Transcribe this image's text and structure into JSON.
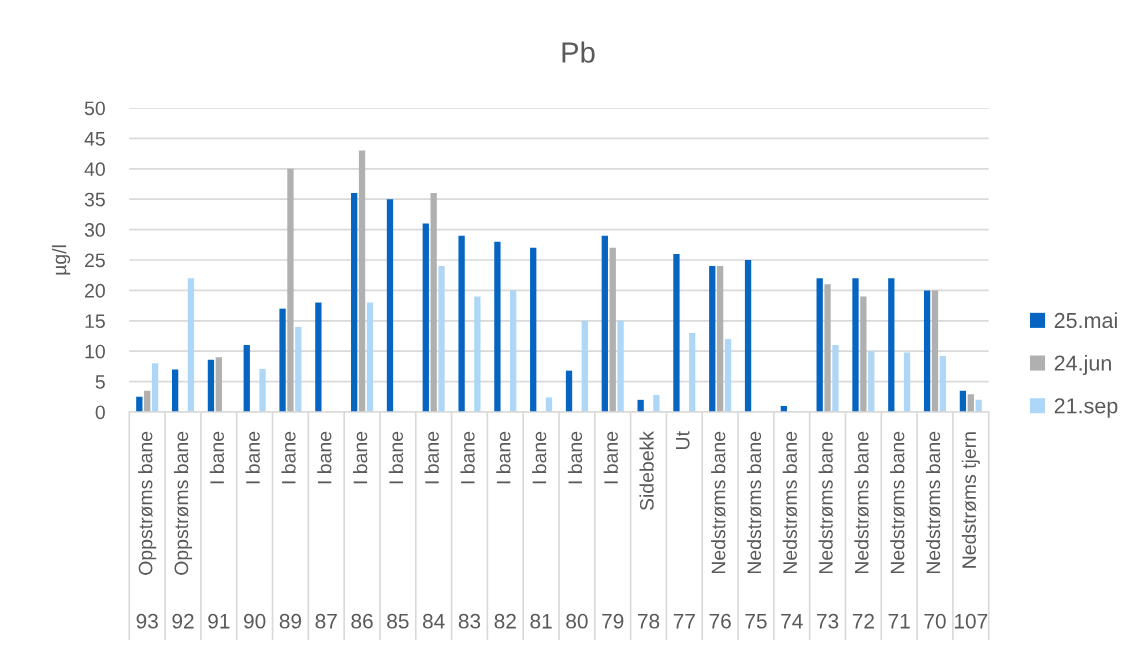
{
  "chart_data": {
    "type": "bar",
    "title": "Pb",
    "ylabel": "µg/l",
    "categories": [
      "Oppstrøms bane\n93",
      "Oppstrøms bane\n92",
      "I bane\n91",
      "I bane\n90",
      "I bane\n89",
      "I bane\n87",
      "I bane\n86",
      "I bane\n85",
      "I bane\n84",
      "I bane\n83",
      "I bane\n82",
      "I bane\n81",
      "I bane\n80",
      "I bane\n79",
      "Sidebekk\n78",
      "Ut\n77",
      "Nedstrøms bane\n76",
      "Nedstrøms bane\n75",
      "Nedstrøms bane\n74",
      "Nedstrøms bane\n73",
      "Nedstrøms bane\n72",
      "Nedstrøms bane\n71",
      "Nedstrøms bane\n70",
      "Nedstrøms tjern\n107"
    ],
    "series": [
      {
        "name": "25.mai",
        "color": "#0565c0",
        "values": [
          2.5,
          7,
          8.6,
          11,
          17,
          18,
          36,
          35,
          31,
          29,
          28,
          27,
          6.8,
          29,
          2.0,
          26,
          24,
          25,
          1.0,
          22,
          22,
          22,
          20,
          3.5
        ]
      },
      {
        "name": "24.jun",
        "color": "#b0b0b0",
        "values": [
          3.5,
          null,
          9,
          null,
          40,
          null,
          43,
          null,
          36,
          null,
          null,
          null,
          null,
          27,
          null,
          null,
          24,
          null,
          null,
          21,
          19,
          null,
          20,
          2.9
        ]
      },
      {
        "name": "21.sep",
        "color": "#aed7f7",
        "values": [
          8,
          22,
          null,
          7.1,
          14,
          null,
          18,
          null,
          24,
          19,
          20,
          2.4,
          15,
          15,
          2.8,
          13,
          12,
          null,
          null,
          11,
          10,
          9.8,
          9.2,
          2.0
        ]
      }
    ],
    "ylim": [
      0,
      50
    ],
    "yticks": [
      0,
      5,
      10,
      15,
      20,
      25,
      30,
      35,
      40,
      45,
      50
    ],
    "grid": "y",
    "legend": "right"
  }
}
